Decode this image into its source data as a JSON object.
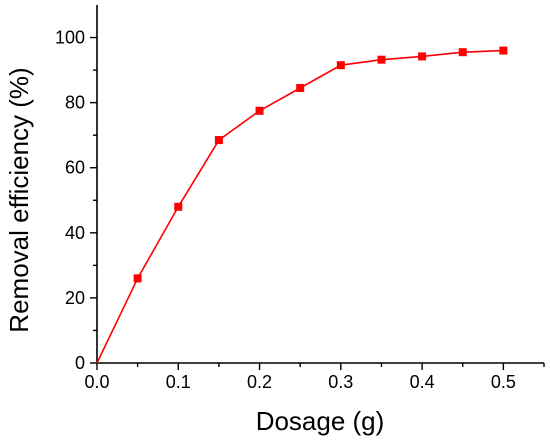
{
  "chart_data": {
    "type": "line",
    "title": "",
    "xlabel": "Dosage (g)",
    "ylabel": "Removal efficiency (%)",
    "xlim": [
      0.0,
      0.55
    ],
    "ylim": [
      0,
      110
    ],
    "x_ticks": [
      "0.0",
      "0.1",
      "0.2",
      "0.3",
      "0.4",
      "0.5"
    ],
    "y_ticks": [
      "0",
      "20",
      "40",
      "60",
      "80",
      "100"
    ],
    "grid": false,
    "legend": "none",
    "series": [
      {
        "color": "#ff0000",
        "marker": "square",
        "x": [
          0.0,
          0.05,
          0.1,
          0.15,
          0.2,
          0.25,
          0.3,
          0.35,
          0.4,
          0.45,
          0.5
        ],
        "y": [
          0,
          26,
          48,
          68.5,
          77.5,
          84.5,
          91.5,
          93.2,
          94.2,
          95.5,
          96
        ]
      }
    ]
  }
}
